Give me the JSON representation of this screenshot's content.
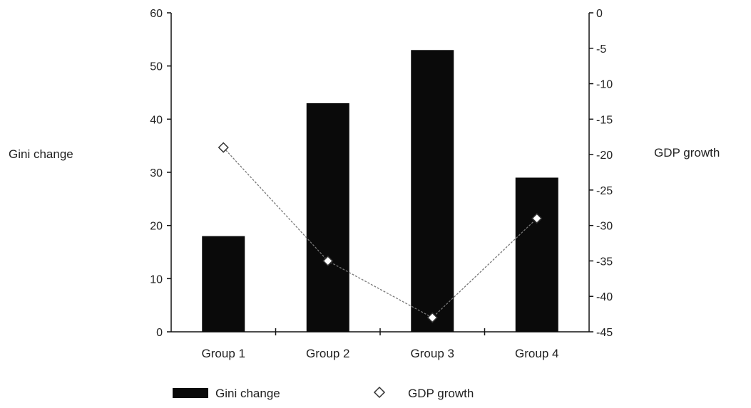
{
  "chart_data": {
    "type": "bar",
    "categories": [
      "Group 1",
      "Group 2",
      "Group 3",
      "Group 4"
    ],
    "series": [
      {
        "name": "Gini change",
        "kind": "bar",
        "axis": "left",
        "values": [
          18,
          43,
          53,
          29
        ],
        "color": "#0a0a0a"
      },
      {
        "name": "GDP growth",
        "kind": "line",
        "axis": "right",
        "values": [
          -19,
          -35,
          -43,
          -29
        ],
        "marker": "diamond",
        "color": "#777777"
      }
    ],
    "ylabel_left": "Gini change",
    "ylabel_right": "GDP growth",
    "ylim_left": [
      0,
      60
    ],
    "ylim_right": [
      -45,
      0
    ],
    "yticks_left": [
      "0",
      "10",
      "20",
      "30",
      "40",
      "50",
      "60"
    ],
    "yticks_right": [
      "0",
      "-5",
      "-10",
      "-15",
      "-20",
      "-25",
      "-30",
      "-35",
      "-40",
      "-45"
    ],
    "grid": false,
    "legend_position": "bottom"
  }
}
